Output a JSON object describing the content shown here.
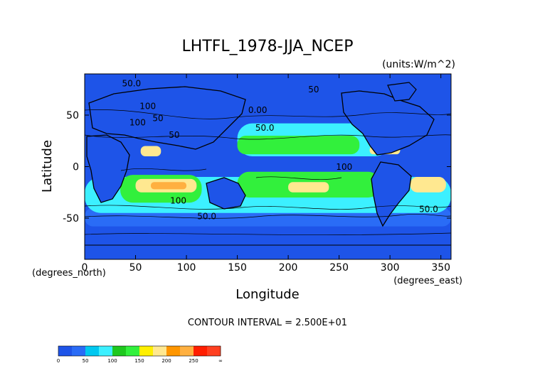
{
  "chart_data": {
    "type": "heatmap",
    "title": "LHTFL_1978-JJA_NCEP",
    "units_note": "(units:W/m^2)",
    "xlabel": "Longitude",
    "ylabel": "Latitude",
    "x_unit_note": "(degrees_east)",
    "y_unit_note": "(degrees_north)",
    "xlim": [
      0,
      360
    ],
    "ylim": [
      -90,
      90
    ],
    "x_ticks": [
      0,
      50,
      100,
      150,
      200,
      250,
      300,
      350
    ],
    "y_ticks": [
      -50,
      0,
      50
    ],
    "contour_interval_text": "CONTOUR INTERVAL = 2.500E+01",
    "contour_labels": [
      {
        "text": "50.0",
        "lon": 46,
        "lat": 78
      },
      {
        "text": "100",
        "lon": 62,
        "lat": 56
      },
      {
        "text": "50",
        "lon": 72,
        "lat": 44
      },
      {
        "text": "100",
        "lon": 52,
        "lat": 40
      },
      {
        "text": "50",
        "lon": 88,
        "lat": 28
      },
      {
        "text": "0.00",
        "lon": 170,
        "lat": 52
      },
      {
        "text": "50.0",
        "lon": 177,
        "lat": 35
      },
      {
        "text": "50",
        "lon": 225,
        "lat": 72
      },
      {
        "text": "100",
        "lon": 255,
        "lat": -3
      },
      {
        "text": "100",
        "lon": 92,
        "lat": -36
      },
      {
        "text": "50.0",
        "lon": 120,
        "lat": -51
      },
      {
        "text": "50.0",
        "lon": 338,
        "lat": -44
      }
    ],
    "colorbar": {
      "tick_labels": [
        "0",
        "50",
        "100",
        "150",
        "200",
        "250",
        "∞"
      ],
      "bins": [
        {
          "from": 0,
          "to": 25,
          "color": "#1e54e8"
        },
        {
          "from": 25,
          "to": 50,
          "color": "#2a6cf6"
        },
        {
          "from": 50,
          "to": 75,
          "color": "#00c8f0"
        },
        {
          "from": 75,
          "to": 100,
          "color": "#3cf0ff"
        },
        {
          "from": 100,
          "to": 125,
          "color": "#1ec81e"
        },
        {
          "from": 125,
          "to": 150,
          "color": "#32f03c"
        },
        {
          "from": 150,
          "to": 175,
          "color": "#fff000"
        },
        {
          "from": 175,
          "to": 200,
          "color": "#ffe890"
        },
        {
          "from": 200,
          "to": 225,
          "color": "#ff9600"
        },
        {
          "from": 225,
          "to": 250,
          "color": "#ffb040"
        },
        {
          "from": 250,
          "to": 275,
          "color": "#ff1e00"
        },
        {
          "from": 275,
          "to": "inf",
          "color": "#ff4020"
        }
      ]
    },
    "regions": [
      {
        "name": "background",
        "value_bin": "0-25",
        "lon": [
          0,
          360
        ],
        "lat": [
          -90,
          90
        ]
      },
      {
        "name": "southern-storm-belt",
        "value_bin": "25-50",
        "lon": [
          0,
          360
        ],
        "lat": [
          -58,
          -40
        ]
      },
      {
        "name": "southern-subtropics",
        "value_bin": "75-100",
        "lon": [
          0,
          360
        ],
        "lat": [
          -45,
          -10
        ]
      },
      {
        "name": "northern-pacific-band",
        "value_bin": "75-100",
        "lon": [
          150,
          300
        ],
        "lat": [
          10,
          42
        ]
      },
      {
        "name": "indian-ocean-south",
        "value_bin": "125-150",
        "lon": [
          35,
          115
        ],
        "lat": [
          -35,
          -8
        ]
      },
      {
        "name": "indian-ocean-core",
        "value_bin": "175-200",
        "lon": [
          50,
          110
        ],
        "lat": [
          -25,
          -12
        ]
      },
      {
        "name": "indian-ocean-max",
        "value_bin": "225-250",
        "lon": [
          65,
          100
        ],
        "lat": [
          -22,
          -15
        ]
      },
      {
        "name": "pacific-south-band",
        "value_bin": "125-150",
        "lon": [
          150,
          290
        ],
        "lat": [
          -30,
          -5
        ]
      },
      {
        "name": "pacific-south-core",
        "value_bin": "175-200",
        "lon": [
          200,
          240
        ],
        "lat": [
          -25,
          -15
        ]
      },
      {
        "name": "north-pacific-trades",
        "value_bin": "125-150",
        "lon": [
          150,
          270
        ],
        "lat": [
          12,
          30
        ]
      },
      {
        "name": "arabian-sea",
        "value_bin": "175-200",
        "lon": [
          55,
          75
        ],
        "lat": [
          10,
          20
        ]
      },
      {
        "name": "caribbean",
        "value_bin": "175-200",
        "lon": [
          280,
          310
        ],
        "lat": [
          12,
          20
        ]
      },
      {
        "name": "south-atlantic",
        "value_bin": "175-200",
        "lon": [
          320,
          355
        ],
        "lat": [
          -25,
          -10
        ]
      }
    ]
  }
}
